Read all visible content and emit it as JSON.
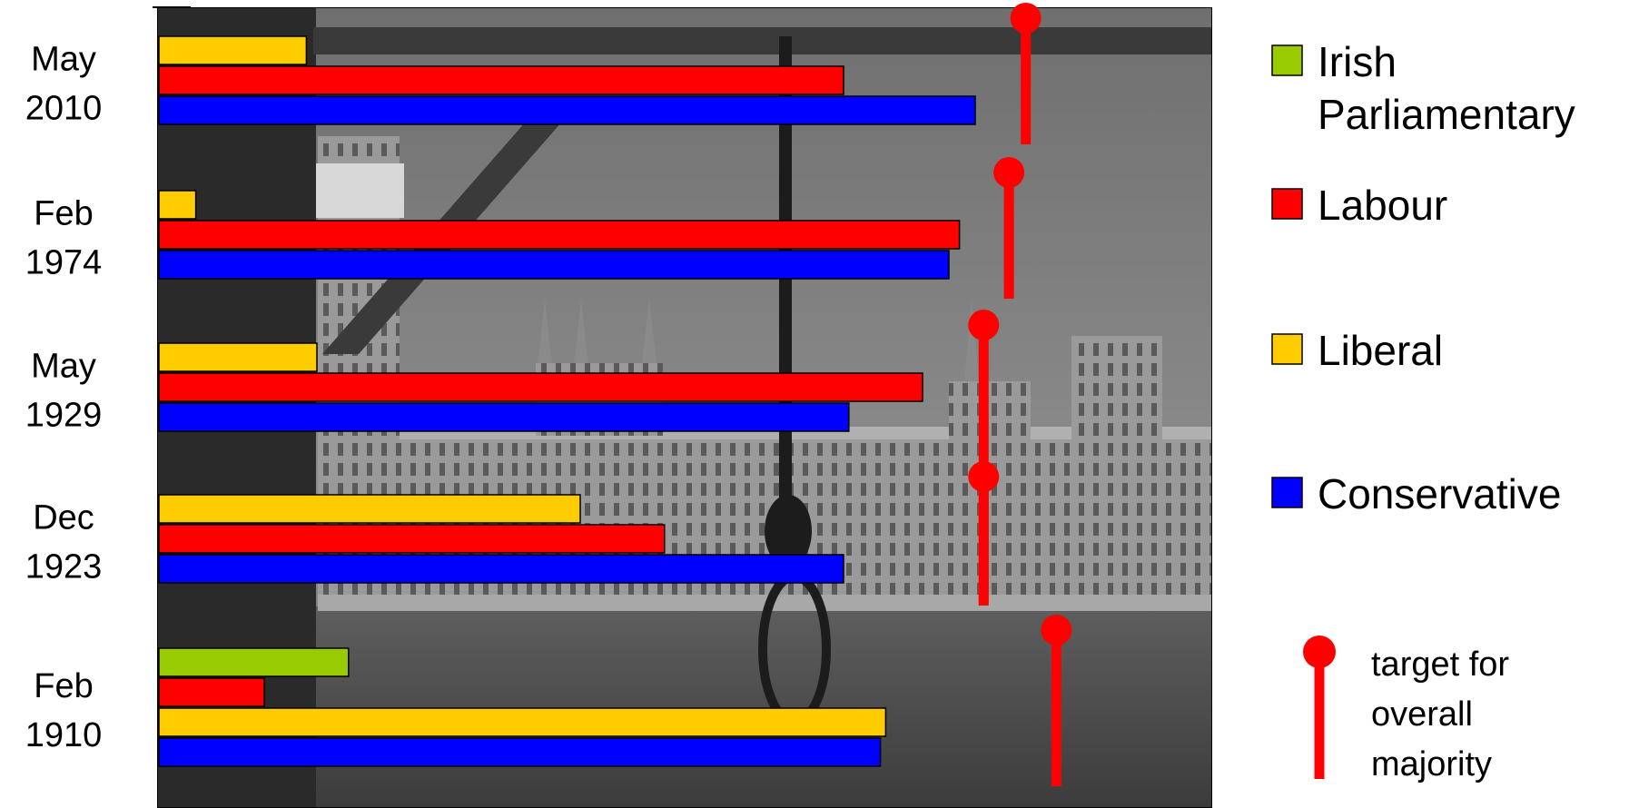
{
  "chart_data": {
    "type": "bar",
    "orientation": "horizontal",
    "categories": [
      {
        "line1": "May",
        "line2": "2010"
      },
      {
        "line1": "Feb",
        "line2": "1974"
      },
      {
        "line1": "May",
        "line2": "1929"
      },
      {
        "line1": "Dec",
        "line2": "1923"
      },
      {
        "line1": "Feb",
        "line2": "1910"
      }
    ],
    "xlim": [
      0,
      100
    ],
    "series": [
      {
        "name": "Irish Parliamentary",
        "color": "#99cc00",
        "values": [
          null,
          null,
          null,
          null,
          18
        ]
      },
      {
        "name": "Labour",
        "color": "#ff0000",
        "values": [
          65,
          76,
          72.5,
          48,
          10
        ]
      },
      {
        "name": "Liberal",
        "color": "#ffcc00",
        "values": [
          14,
          3.5,
          15,
          40,
          69
        ]
      },
      {
        "name": "Conservative",
        "color": "#0000ff",
        "values": [
          77.5,
          75,
          65.5,
          65,
          68.5
        ]
      }
    ],
    "bar_order_per_group": [
      [
        "Liberal",
        "Labour",
        "Conservative"
      ],
      [
        "Liberal",
        "Labour",
        "Conservative"
      ],
      [
        "Liberal",
        "Labour",
        "Conservative"
      ],
      [
        "Liberal",
        "Labour",
        "Conservative"
      ],
      [
        "Irish Parliamentary",
        "Labour",
        "Liberal",
        "Conservative"
      ]
    ],
    "majority_targets": [
      82.3,
      80.7,
      78.3,
      78.3,
      85.2
    ],
    "target_color": "#ff0000",
    "legend": {
      "placement": "right",
      "items": [
        {
          "lines": [
            "Irish",
            "Parliamentary"
          ],
          "color": "#99cc00"
        },
        {
          "lines": [
            "Labour"
          ],
          "color": "#ff0000"
        },
        {
          "lines": [
            "Liberal"
          ],
          "color": "#ffcc00"
        },
        {
          "lines": [
            "Conservative"
          ],
          "color": "#0000ff"
        }
      ],
      "target_marker": {
        "lines": [
          "target for",
          "overall",
          "majority"
        ],
        "color": "#ff0000"
      }
    },
    "background": "grayscale photograph of the Houses of Parliament with a hangman's noose",
    "grid": false
  }
}
